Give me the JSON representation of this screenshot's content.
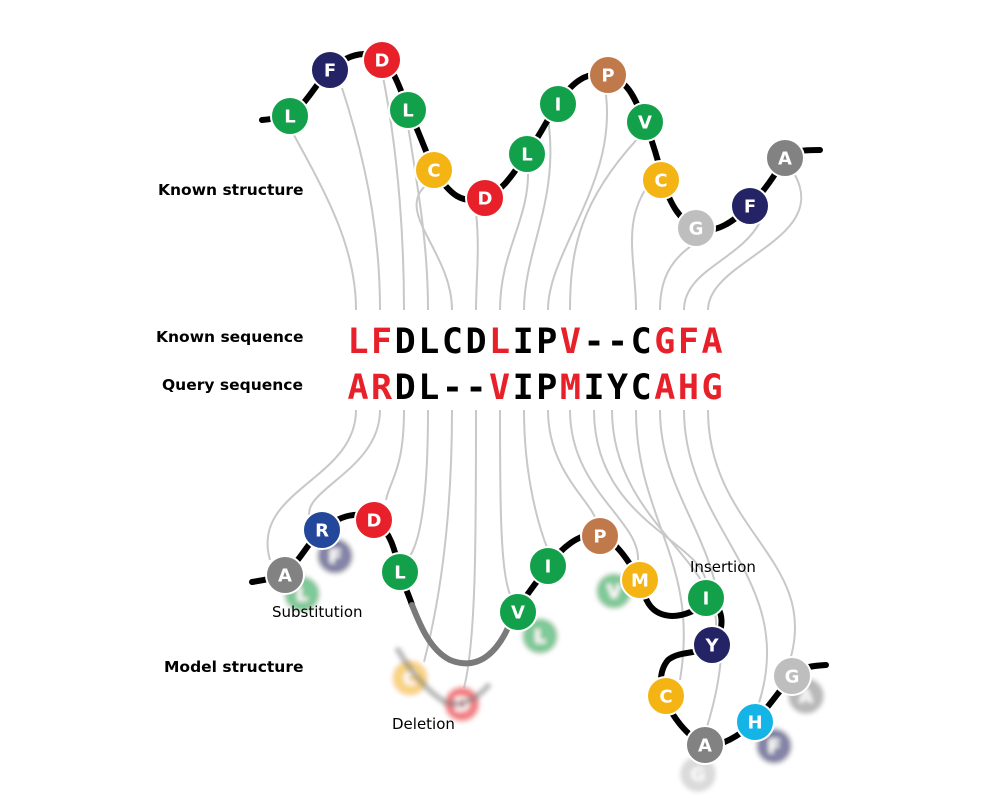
{
  "labels": {
    "known_structure": "Known structure",
    "known_sequence": "Known sequence",
    "query_sequence": "Query sequence",
    "model_structure": "Model structure",
    "substitution": "Substitution",
    "insertion": "Insertion",
    "deletion": "Deletion"
  },
  "colors": {
    "red": "#e8202a",
    "green": "#13a04a",
    "navy": "#232366",
    "blue": "#23479a",
    "orange": "#f4b414",
    "brown": "#c0794a",
    "gray": "#828282",
    "lightgray": "#bebebe",
    "cyan": "#14b4e6",
    "identical": "#000000",
    "conservative": "#000000",
    "mismatch": "#e8202a",
    "connector": "#c8c8c8"
  },
  "alignment": {
    "known": [
      {
        "char": "L",
        "match": "mismatch"
      },
      {
        "char": "F",
        "match": "mismatch"
      },
      {
        "char": "D",
        "match": "identical"
      },
      {
        "char": "L",
        "match": "identical"
      },
      {
        "char": "C",
        "match": "gap"
      },
      {
        "char": "D",
        "match": "gap"
      },
      {
        "char": "L",
        "match": "mismatch"
      },
      {
        "char": "I",
        "match": "identical"
      },
      {
        "char": "P",
        "match": "identical"
      },
      {
        "char": "V",
        "match": "mismatch"
      },
      {
        "char": "-",
        "match": "gap"
      },
      {
        "char": "-",
        "match": "gap"
      },
      {
        "char": "C",
        "match": "identical"
      },
      {
        "char": "G",
        "match": "mismatch"
      },
      {
        "char": "F",
        "match": "mismatch"
      },
      {
        "char": "A",
        "match": "mismatch"
      }
    ],
    "query": [
      {
        "char": "A",
        "match": "mismatch"
      },
      {
        "char": "R",
        "match": "mismatch"
      },
      {
        "char": "D",
        "match": "identical"
      },
      {
        "char": "L",
        "match": "identical"
      },
      {
        "char": "-",
        "match": "gap"
      },
      {
        "char": "-",
        "match": "gap"
      },
      {
        "char": "V",
        "match": "mismatch"
      },
      {
        "char": "I",
        "match": "identical"
      },
      {
        "char": "P",
        "match": "identical"
      },
      {
        "char": "M",
        "match": "mismatch"
      },
      {
        "char": "I",
        "match": "gap"
      },
      {
        "char": "Y",
        "match": "gap"
      },
      {
        "char": "C",
        "match": "identical"
      },
      {
        "char": "A",
        "match": "mismatch"
      },
      {
        "char": "H",
        "match": "mismatch"
      },
      {
        "char": "G",
        "match": "mismatch"
      }
    ]
  },
  "known_beads": [
    {
      "letter": "L",
      "color": "green"
    },
    {
      "letter": "F",
      "color": "navy"
    },
    {
      "letter": "D",
      "color": "red"
    },
    {
      "letter": "L",
      "color": "green"
    },
    {
      "letter": "C",
      "color": "orange"
    },
    {
      "letter": "D",
      "color": "red"
    },
    {
      "letter": "L",
      "color": "green"
    },
    {
      "letter": "I",
      "color": "green"
    },
    {
      "letter": "P",
      "color": "brown"
    },
    {
      "letter": "V",
      "color": "green"
    },
    {
      "letter": "C",
      "color": "orange"
    },
    {
      "letter": "G",
      "color": "lightgray"
    },
    {
      "letter": "F",
      "color": "navy"
    },
    {
      "letter": "A",
      "color": "gray"
    }
  ],
  "model_beads": [
    {
      "letter": "A",
      "color": "gray"
    },
    {
      "letter": "R",
      "color": "blue"
    },
    {
      "letter": "D",
      "color": "red"
    },
    {
      "letter": "L",
      "color": "green"
    },
    {
      "letter": "V",
      "color": "green"
    },
    {
      "letter": "I",
      "color": "green"
    },
    {
      "letter": "P",
      "color": "brown"
    },
    {
      "letter": "M",
      "color": "orange"
    },
    {
      "letter": "I",
      "color": "green"
    },
    {
      "letter": "Y",
      "color": "navy"
    },
    {
      "letter": "C",
      "color": "orange"
    },
    {
      "letter": "A",
      "color": "gray"
    },
    {
      "letter": "H",
      "color": "cyan"
    },
    {
      "letter": "G",
      "color": "lightgray"
    }
  ],
  "ghost_beads": [
    {
      "letter": "L",
      "color": "green"
    },
    {
      "letter": "F",
      "color": "navy"
    },
    {
      "letter": "L",
      "color": "green"
    },
    {
      "letter": "V",
      "color": "green"
    },
    {
      "letter": "C",
      "color": "orange"
    },
    {
      "letter": "D",
      "color": "red"
    },
    {
      "letter": "G",
      "color": "lightgray"
    },
    {
      "letter": "F",
      "color": "navy"
    },
    {
      "letter": "A",
      "color": "gray"
    }
  ]
}
